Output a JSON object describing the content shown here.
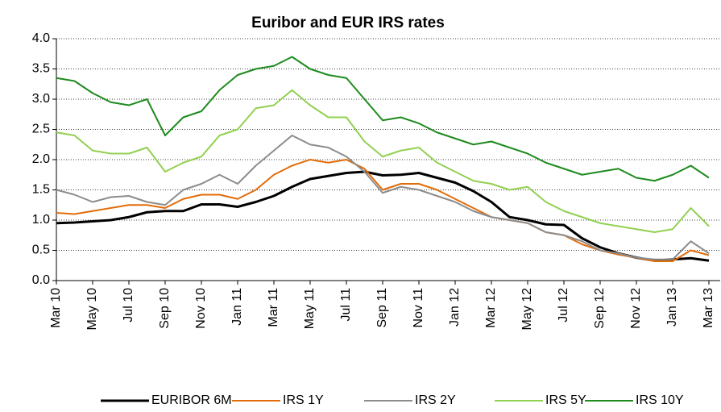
{
  "chart_data": {
    "type": "line",
    "title": "Euribor and EUR IRS rates",
    "categories": [
      "Mar 10",
      null,
      "May 10",
      null,
      "Jul 10",
      null,
      "Sep 10",
      null,
      "Nov 10",
      null,
      "Jan 11",
      null,
      "Mar 11",
      null,
      "May 11",
      null,
      "Jul 11",
      null,
      "Sep 11",
      null,
      "Nov 11",
      null,
      "Jan 12",
      null,
      "Mar 12",
      null,
      "May 12",
      null,
      "Jul 12",
      null,
      "Sep 12",
      null,
      "Nov 12",
      null,
      "Jan 13",
      null,
      "Mar 13"
    ],
    "series": [
      {
        "name": "EURIBOR 6M",
        "color": "#000000",
        "values": [
          0.95,
          0.96,
          0.98,
          1.0,
          1.05,
          1.13,
          1.15,
          1.15,
          1.26,
          1.26,
          1.22,
          1.3,
          1.4,
          1.55,
          1.68,
          1.73,
          1.78,
          1.8,
          1.74,
          1.75,
          1.78,
          1.7,
          1.62,
          1.48,
          1.3,
          1.05,
          1.0,
          0.93,
          0.92,
          0.7,
          0.55,
          0.45,
          0.38,
          0.33,
          0.35,
          0.37,
          0.33
        ]
      },
      {
        "name": "IRS 1Y",
        "color": "#e36c0a",
        "values": [
          1.12,
          1.1,
          1.15,
          1.2,
          1.25,
          1.25,
          1.2,
          1.35,
          1.42,
          1.42,
          1.35,
          1.5,
          1.75,
          1.9,
          2.0,
          1.95,
          2.0,
          1.85,
          1.5,
          1.6,
          1.6,
          1.5,
          1.35,
          1.2,
          1.05,
          1.0,
          0.95,
          0.8,
          0.75,
          0.6,
          0.5,
          0.43,
          0.38,
          0.32,
          0.32,
          0.5,
          0.42
        ]
      },
      {
        "name": "IRS 2Y",
        "color": "#8c8c8c",
        "values": [
          1.5,
          1.42,
          1.3,
          1.38,
          1.4,
          1.3,
          1.25,
          1.5,
          1.6,
          1.75,
          1.6,
          1.9,
          2.15,
          2.4,
          2.25,
          2.2,
          2.05,
          1.8,
          1.45,
          1.55,
          1.5,
          1.4,
          1.3,
          1.15,
          1.05,
          1.0,
          0.95,
          0.8,
          0.75,
          0.65,
          0.5,
          0.45,
          0.38,
          0.35,
          0.35,
          0.65,
          0.45
        ]
      },
      {
        "name": "IRS 5Y",
        "color": "#92d050",
        "values": [
          2.45,
          2.4,
          2.15,
          2.1,
          2.1,
          2.2,
          1.8,
          1.95,
          2.05,
          2.4,
          2.5,
          2.85,
          2.9,
          3.15,
          2.9,
          2.7,
          2.7,
          2.3,
          2.05,
          2.15,
          2.2,
          1.95,
          1.8,
          1.65,
          1.6,
          1.5,
          1.55,
          1.3,
          1.15,
          1.05,
          0.95,
          0.9,
          0.85,
          0.8,
          0.85,
          1.2,
          0.9
        ]
      },
      {
        "name": "IRS 10Y",
        "color": "#1e8b1e",
        "values": [
          3.35,
          3.3,
          3.1,
          2.95,
          2.9,
          3.0,
          2.4,
          2.7,
          2.8,
          3.15,
          3.4,
          3.5,
          3.55,
          3.7,
          3.5,
          3.4,
          3.35,
          3.0,
          2.65,
          2.7,
          2.6,
          2.45,
          2.35,
          2.25,
          2.3,
          2.2,
          2.1,
          1.95,
          1.85,
          1.75,
          1.8,
          1.85,
          1.7,
          1.65,
          1.75,
          1.9,
          1.7
        ]
      }
    ],
    "ylim": [
      0,
      4
    ],
    "yticks": [
      {
        "value": 0,
        "label": "0.0"
      },
      0.5,
      {
        "value": 1,
        "label": "1.0"
      },
      1.5,
      {
        "value": 2,
        "label": "2.0"
      },
      2.5,
      {
        "value": 3,
        "label": "3.0"
      },
      3.5,
      {
        "value": 4,
        "label": "4.0"
      }
    ],
    "grid": true,
    "legend": "bottom"
  }
}
